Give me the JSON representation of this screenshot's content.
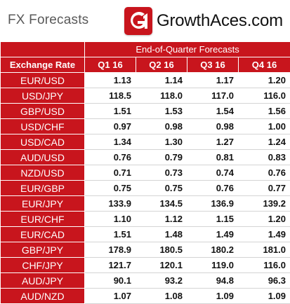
{
  "page": {
    "title": "FX Forecasts"
  },
  "brand": {
    "name": "GrowthAces.com",
    "logo_text": "G1",
    "accent": "#c8151d"
  },
  "table": {
    "group_header": "End-of-Quarter Forecasts",
    "row_header": "Exchange Rate",
    "columns": [
      "Q1 16",
      "Q2 16",
      "Q3 16",
      "Q4 16"
    ],
    "rows": [
      {
        "pair": "EUR/USD",
        "values": [
          "1.13",
          "1.14",
          "1.17",
          "1.20"
        ]
      },
      {
        "pair": "USD/JPY",
        "values": [
          "118.5",
          "118.0",
          "117.0",
          "116.0"
        ]
      },
      {
        "pair": "GBP/USD",
        "values": [
          "1.51",
          "1.53",
          "1.54",
          "1.56"
        ]
      },
      {
        "pair": "USD/CHF",
        "values": [
          "0.97",
          "0.98",
          "0.98",
          "1.00"
        ]
      },
      {
        "pair": "USD/CAD",
        "values": [
          "1.34",
          "1.30",
          "1.27",
          "1.24"
        ]
      },
      {
        "pair": "AUD/USD",
        "values": [
          "0.76",
          "0.79",
          "0.81",
          "0.83"
        ]
      },
      {
        "pair": "NZD/USD",
        "values": [
          "0.71",
          "0.73",
          "0.74",
          "0.76"
        ]
      },
      {
        "pair": "EUR/GBP",
        "values": [
          "0.75",
          "0.75",
          "0.76",
          "0.77"
        ]
      },
      {
        "pair": "EUR/JPY",
        "values": [
          "133.9",
          "134.5",
          "136.9",
          "139.2"
        ]
      },
      {
        "pair": "EUR/CHF",
        "values": [
          "1.10",
          "1.12",
          "1.15",
          "1.20"
        ]
      },
      {
        "pair": "EUR/CAD",
        "values": [
          "1.51",
          "1.48",
          "1.49",
          "1.49"
        ]
      },
      {
        "pair": "GBP/JPY",
        "values": [
          "178.9",
          "180.5",
          "180.2",
          "181.0"
        ]
      },
      {
        "pair": "CHF/JPY",
        "values": [
          "121.7",
          "120.1",
          "119.0",
          "116.0"
        ]
      },
      {
        "pair": "AUD/JPY",
        "values": [
          "90.1",
          "93.2",
          "94.8",
          "96.3"
        ]
      },
      {
        "pair": "AUD/NZD",
        "values": [
          "1.07",
          "1.08",
          "1.09",
          "1.09"
        ]
      }
    ]
  }
}
